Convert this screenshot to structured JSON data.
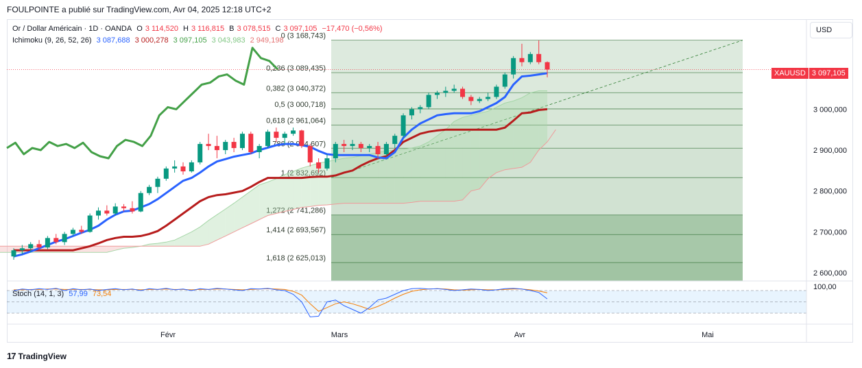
{
  "header": {
    "publisher_line": "FOULPOINTE a publié sur TradingView.com, Avr 04, 2025 12:18 UTC+2"
  },
  "symbol": {
    "name": "Or / Dollar Américain · 1D · OANDA",
    "o_label": "O",
    "o_value": "3 114,520",
    "h_label": "H",
    "h_value": "3 116,815",
    "b_label": "B",
    "b_value": "3 078,515",
    "c_label": "C",
    "c_value": "3 097,105",
    "change": "−17,470 (−0,56%)"
  },
  "ichimoku_legend": {
    "name": "Ichimoku (9, 26, 52, 26)",
    "tenkan": "3 087,688",
    "kijun": "3 000,278",
    "chikou": "3 097,105",
    "span_a": "3 043,983",
    "span_b": "2 949,198"
  },
  "stoch_legend": {
    "name": "Stoch (14, 1, 3)",
    "k": "57,99",
    "d": "73,54"
  },
  "currency_button": "USD",
  "price_tag": {
    "symbol": "XAUUSD",
    "value": "3 097,105"
  },
  "colors": {
    "up": "#089981",
    "down": "#f23645",
    "tenkan": "#2962ff",
    "kijun": "#b71c1c",
    "chikou": "#43a047",
    "cloud_bull": "#a5d6a7",
    "cloud_bear": "#ef9a9a",
    "fib_fill": "#2e7d32",
    "stoch_k": "#2962ff",
    "stoch_d": "#f57c00"
  },
  "chart_data": {
    "type": "candlestick",
    "y_axis": {
      "min": 2580000,
      "max": 3200000,
      "ticks": [
        "3 000,000",
        "2 900,000",
        "2 800,000",
        "2 700,000",
        "2 600,000"
      ],
      "tick_values": [
        3000000,
        2900000,
        2800000,
        2700000,
        2600000
      ]
    },
    "x_axis": {
      "labels": [
        "Févr",
        "Mars",
        "Avr",
        "Mai"
      ]
    },
    "fib_levels": [
      {
        "label": "0 (3 168,743)",
        "value": 3168743
      },
      {
        "label": "0,236 (3 089,435)",
        "value": 3089435
      },
      {
        "label": "0,382 (3 040,372)",
        "value": 3040372
      },
      {
        "label": "0,5 (3 000,718)",
        "value": 3000718
      },
      {
        "label": "0,618 (2 961,064)",
        "value": 2961064
      },
      {
        "label": "0,786 (2 904,607)",
        "value": 2904607
      },
      {
        "label": "1 (2 832,692)",
        "value": 2832692
      },
      {
        "label": "1,272 (2 741,286)",
        "value": 2741286
      },
      {
        "label": "1,414 (2 693,567)",
        "value": 2693567
      },
      {
        "label": "1,618 (2 625,013)",
        "value": 2625013
      }
    ],
    "stoch_axis": {
      "label": "100,00"
    },
    "candles": [
      [
        2640,
        2660,
        2632,
        2655
      ],
      [
        2655,
        2668,
        2645,
        2660
      ],
      [
        2660,
        2675,
        2650,
        2670
      ],
      [
        2670,
        2680,
        2655,
        2662
      ],
      [
        2662,
        2690,
        2658,
        2685
      ],
      [
        2685,
        2695,
        2670,
        2675
      ],
      [
        2675,
        2700,
        2668,
        2695
      ],
      [
        2695,
        2710,
        2690,
        2705
      ],
      [
        2705,
        2715,
        2695,
        2700
      ],
      [
        2700,
        2745,
        2698,
        2740
      ],
      [
        2740,
        2760,
        2730,
        2752
      ],
      [
        2752,
        2765,
        2740,
        2745
      ],
      [
        2745,
        2770,
        2740,
        2762
      ],
      [
        2762,
        2768,
        2750,
        2758
      ],
      [
        2758,
        2775,
        2745,
        2750
      ],
      [
        2750,
        2800,
        2748,
        2795
      ],
      [
        2795,
        2815,
        2790,
        2810
      ],
      [
        2810,
        2835,
        2795,
        2830
      ],
      [
        2830,
        2860,
        2825,
        2855
      ],
      [
        2855,
        2875,
        2845,
        2860
      ],
      [
        2860,
        2870,
        2840,
        2848
      ],
      [
        2848,
        2875,
        2845,
        2870
      ],
      [
        2870,
        2920,
        2865,
        2915
      ],
      [
        2915,
        2940,
        2900,
        2910
      ],
      [
        2910,
        2935,
        2880,
        2900
      ],
      [
        2900,
        2925,
        2890,
        2920
      ],
      [
        2920,
        2930,
        2895,
        2905
      ],
      [
        2905,
        2945,
        2900,
        2940
      ],
      [
        2940,
        2945,
        2890,
        2895
      ],
      [
        2895,
        2915,
        2880,
        2910
      ],
      [
        2910,
        2950,
        2905,
        2945
      ],
      [
        2945,
        2955,
        2920,
        2930
      ],
      [
        2930,
        2945,
        2915,
        2940
      ],
      [
        2940,
        2955,
        2935,
        2948
      ],
      [
        2948,
        2950,
        2905,
        2910
      ],
      [
        2910,
        2915,
        2860,
        2870
      ],
      [
        2870,
        2880,
        2845,
        2855
      ],
      [
        2855,
        2890,
        2850,
        2880
      ],
      [
        2880,
        2920,
        2870,
        2915
      ],
      [
        2915,
        2925,
        2895,
        2910
      ],
      [
        2910,
        2925,
        2900,
        2915
      ],
      [
        2915,
        2920,
        2895,
        2905
      ],
      [
        2905,
        2915,
        2895,
        2910
      ],
      [
        2910,
        2920,
        2880,
        2890
      ],
      [
        2890,
        2920,
        2885,
        2915
      ],
      [
        2915,
        2940,
        2905,
        2935
      ],
      [
        2935,
        2990,
        2930,
        2985
      ],
      [
        2985,
        3005,
        2975,
        3000
      ],
      [
        3000,
        3010,
        2990,
        3005
      ],
      [
        3005,
        3040,
        3000,
        3035
      ],
      [
        3035,
        3045,
        3025,
        3040
      ],
      [
        3040,
        3055,
        3030,
        3045
      ],
      [
        3045,
        3060,
        3040,
        3050
      ],
      [
        3050,
        3055,
        3025,
        3030
      ],
      [
        3030,
        3035,
        3010,
        3020
      ],
      [
        3020,
        3030,
        3015,
        3025
      ],
      [
        3025,
        3040,
        3020,
        3030
      ],
      [
        3030,
        3060,
        3025,
        3055
      ],
      [
        3055,
        3090,
        3050,
        3085
      ],
      [
        3085,
        3130,
        3075,
        3125
      ],
      [
        3125,
        3160,
        3105,
        3115
      ],
      [
        3115,
        3140,
        3110,
        3135
      ],
      [
        3135,
        3168,
        3110,
        3115
      ],
      [
        3115,
        3117,
        3078,
        3097
      ]
    ],
    "tenkan": [
      2640,
      2645,
      2652,
      2660,
      2668,
      2676,
      2682,
      2690,
      2698,
      2705,
      2715,
      2730,
      2742,
      2750,
      2752,
      2760,
      2768,
      2780,
      2795,
      2810,
      2825,
      2832,
      2845,
      2860,
      2872,
      2878,
      2884,
      2888,
      2892,
      2900,
      2906,
      2912,
      2915,
      2915,
      2912,
      2908,
      2898,
      2890,
      2888,
      2888,
      2888,
      2888,
      2888,
      2882,
      2880,
      2895,
      2930,
      2950,
      2965,
      2975,
      2985,
      2988,
      2990,
      2990,
      2990,
      2995,
      3005,
      3015,
      3030,
      3060,
      3080,
      3082,
      3085,
      3088
    ],
    "kijun": [
      2655,
      2655,
      2655,
      2655,
      2655,
      2655,
      2655,
      2655,
      2660,
      2665,
      2672,
      2680,
      2685,
      2688,
      2688,
      2690,
      2695,
      2702,
      2715,
      2730,
      2745,
      2760,
      2775,
      2785,
      2790,
      2792,
      2796,
      2800,
      2810,
      2822,
      2832,
      2832,
      2832,
      2832,
      2832,
      2834,
      2835,
      2835,
      2838,
      2845,
      2850,
      2862,
      2872,
      2880,
      2885,
      2900,
      2920,
      2930,
      2940,
      2945,
      2948,
      2950,
      2950,
      2950,
      2950,
      2950,
      2950,
      2950,
      2955,
      2972,
      2990,
      2992,
      2998,
      3000
    ],
    "chikou": [
      2905,
      2918,
      2890,
      2905,
      2900,
      2920,
      2910,
      2915,
      2905,
      2918,
      2895,
      2885,
      2880,
      2910,
      2925,
      2920,
      2910,
      2935,
      2985,
      3005,
      3000,
      3020,
      3040,
      3060,
      3065,
      3080,
      3085,
      3070,
      3060,
      3150,
      3125,
      3118,
      3097
    ],
    "span_a": [
      2660,
      2660,
      2658,
      2655,
      2652,
      2650,
      2650,
      2650,
      2650,
      2650,
      2650,
      2650,
      2650,
      2650,
      2650,
      2650,
      2650,
      2650,
      2650,
      2655,
      2660,
      2662,
      2665,
      2670,
      2672,
      2675,
      2680,
      2690,
      2700,
      2712,
      2728,
      2742,
      2756,
      2770,
      2785,
      2800,
      2815,
      2822,
      2830,
      2840,
      2848,
      2856,
      2862,
      2868,
      2872,
      2876,
      2880,
      2882,
      2886,
      2890,
      2894,
      2898,
      2900,
      2902,
      2905,
      2910,
      2920,
      2935,
      2950,
      2970,
      2980,
      2985,
      2990,
      2995,
      3005,
      3015,
      3020,
      3028,
      3040,
      3045,
      3045
    ],
    "span_b": [
      2665,
      2665,
      2665,
      2665,
      2665,
      2665,
      2665,
      2665,
      2665,
      2665,
      2665,
      2665,
      2665,
      2665,
      2665,
      2665,
      2665,
      2665,
      2665,
      2665,
      2665,
      2665,
      2665,
      2665,
      2665,
      2665,
      2665,
      2665,
      2665,
      2665,
      2670,
      2680,
      2690,
      2700,
      2710,
      2720,
      2730,
      2740,
      2745,
      2750,
      2755,
      2760,
      2762,
      2765,
      2766,
      2768,
      2770,
      2770,
      2770,
      2770,
      2770,
      2770,
      2770,
      2770,
      2772,
      2775,
      2775,
      2775,
      2775,
      2775,
      2778,
      2800,
      2805,
      2830,
      2845,
      2852,
      2855,
      2858,
      2870,
      2900,
      2920,
      2950
    ],
    "stoch_k": [
      80,
      84,
      82,
      85,
      83,
      86,
      80,
      85,
      82,
      84,
      80,
      83,
      85,
      82,
      84,
      80,
      85,
      83,
      86,
      82,
      84,
      80,
      85,
      83,
      86,
      84,
      82,
      80,
      85,
      84,
      86,
      82,
      80,
      70,
      50,
      10,
      12,
      50,
      55,
      40,
      30,
      20,
      35,
      55,
      60,
      70,
      80,
      85,
      86,
      84,
      85,
      83,
      80,
      82,
      84,
      83,
      80,
      82,
      85,
      86,
      84,
      80,
      75,
      58
    ],
    "stoch_d": [
      82,
      82,
      83,
      83,
      84,
      84,
      83,
      83,
      83,
      83,
      82,
      82,
      83,
      83,
      83,
      82,
      83,
      83,
      84,
      83,
      83,
      82,
      83,
      83,
      84,
      84,
      83,
      82,
      83,
      84,
      85,
      84,
      83,
      78,
      68,
      45,
      25,
      35,
      45,
      50,
      45,
      38,
      30,
      38,
      48,
      60,
      70,
      78,
      82,
      84,
      85,
      84,
      82,
      81,
      82,
      83,
      82,
      82,
      83,
      84,
      84,
      82,
      79,
      74
    ]
  }
}
